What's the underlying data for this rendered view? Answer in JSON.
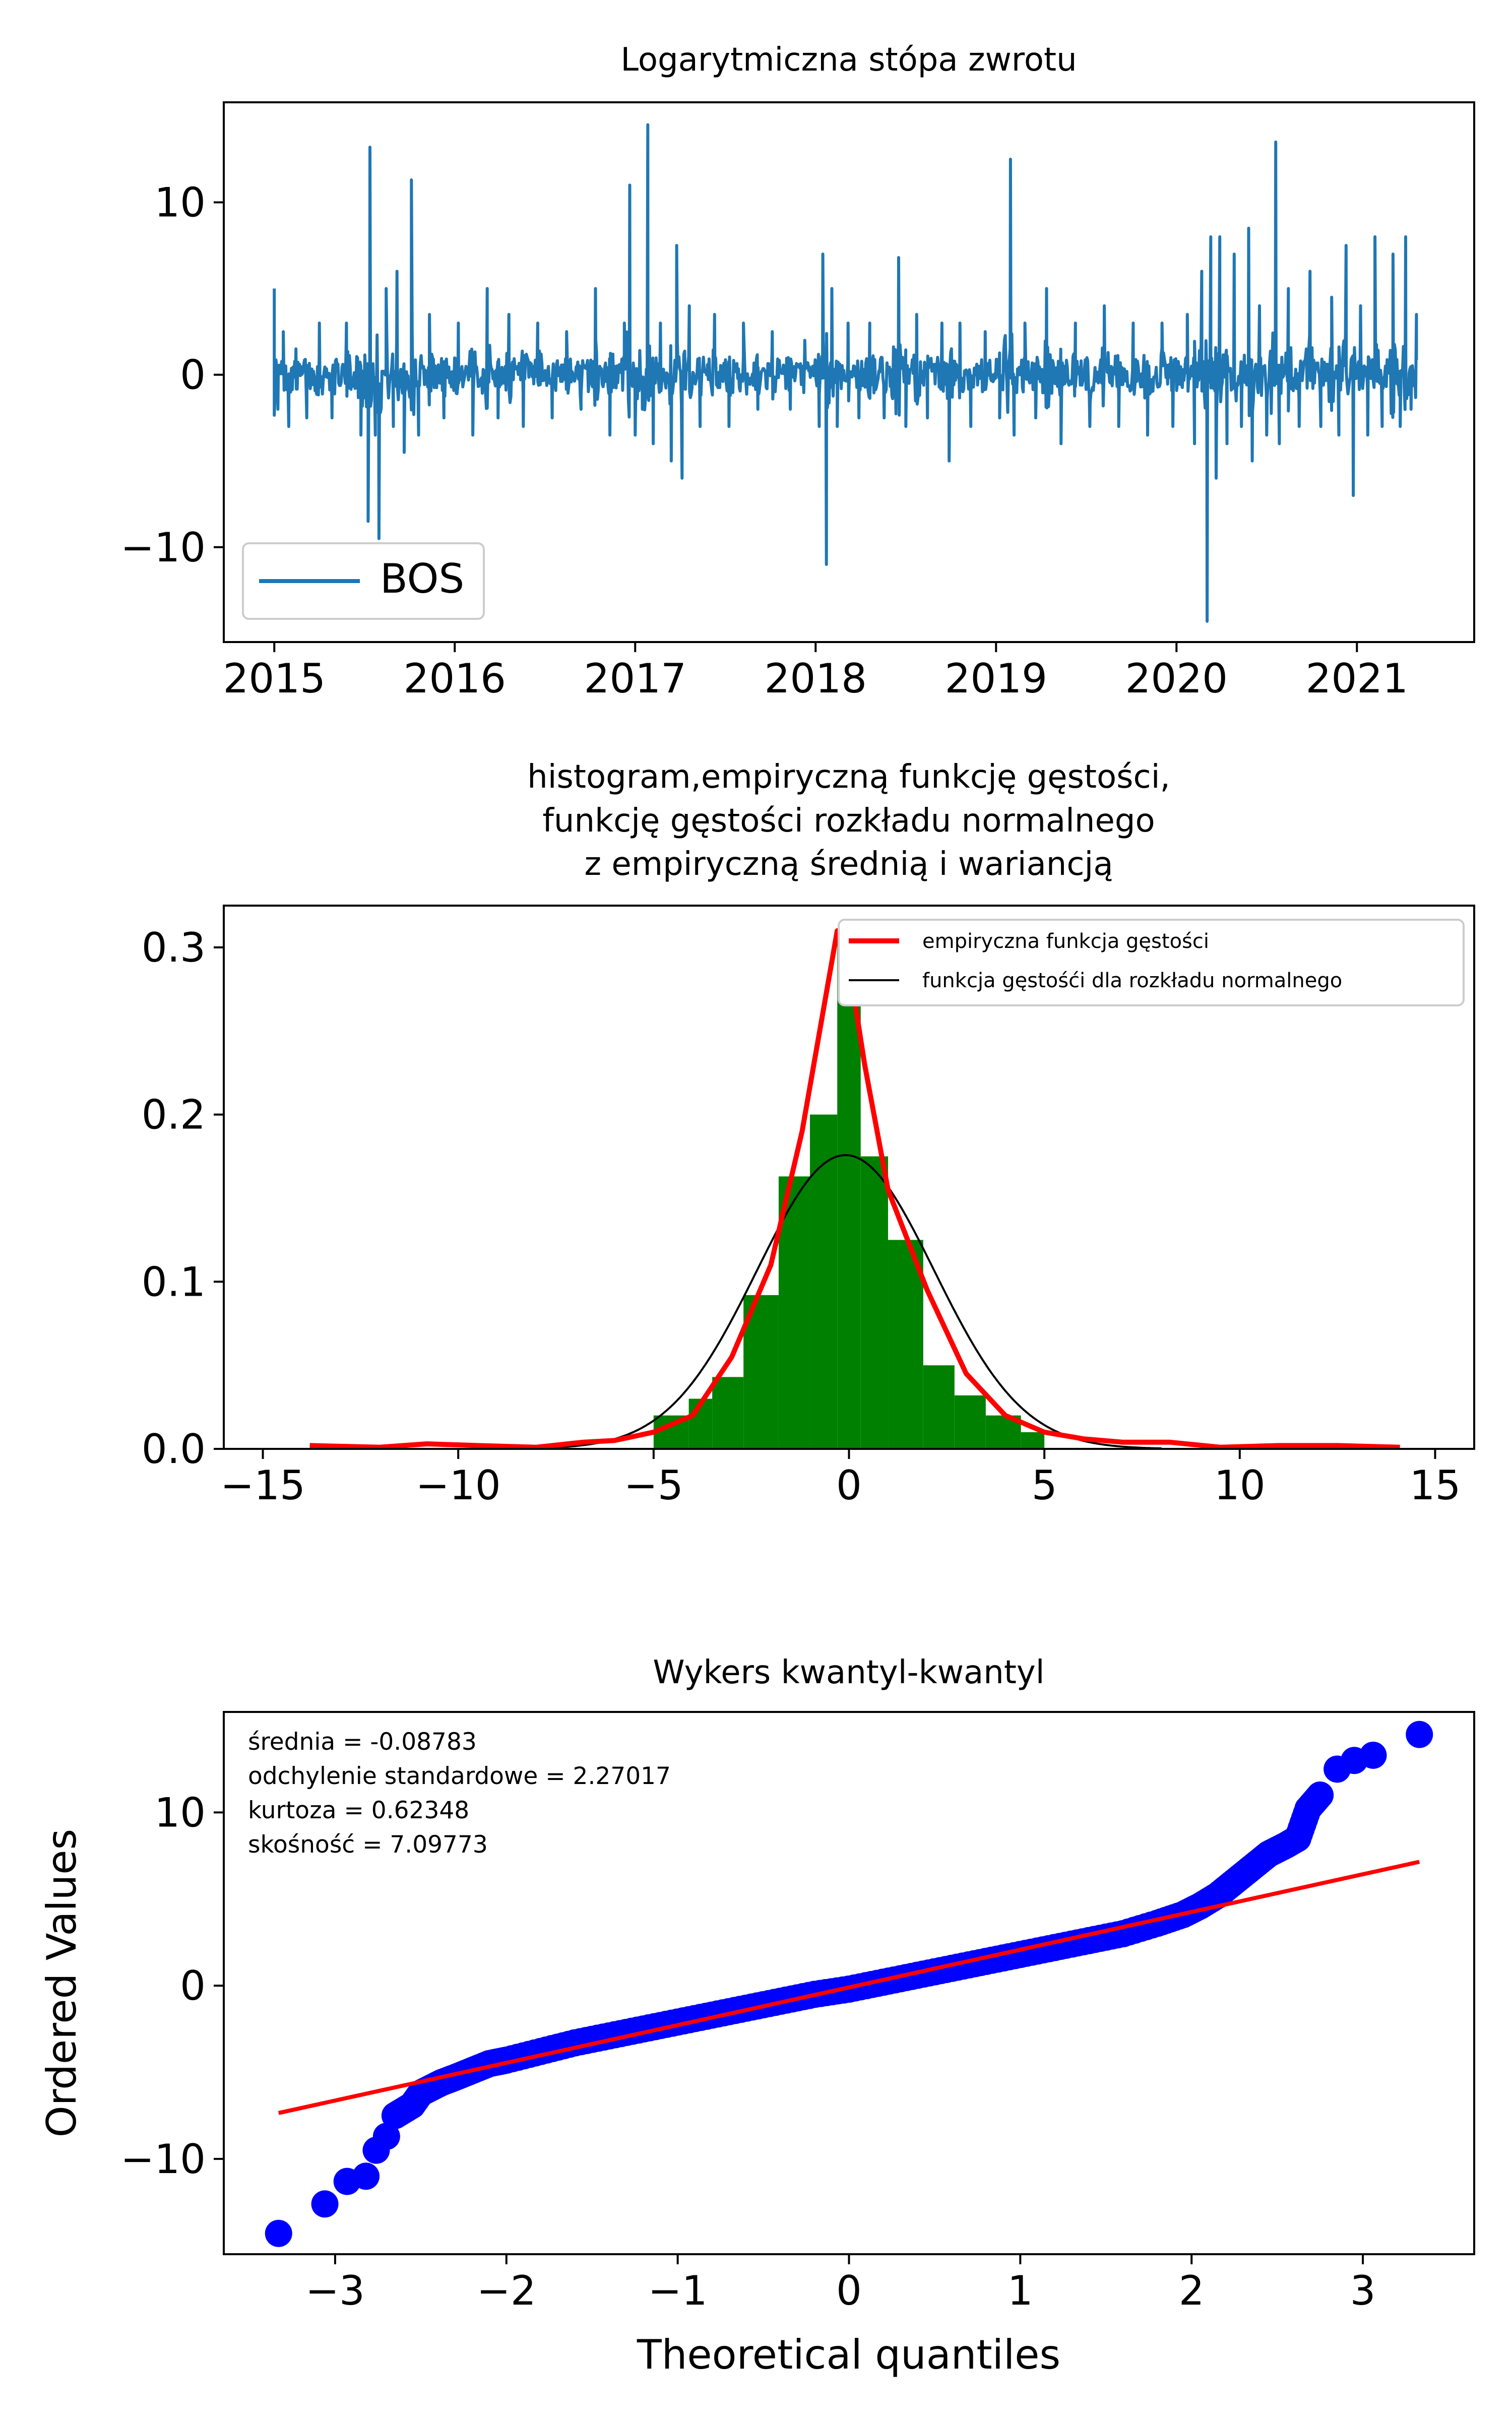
{
  "chart_data": [
    {
      "type": "line",
      "title": "Logarytmiczna stópa zwrotu",
      "xlabel": "",
      "ylabel": "",
      "xlim": [
        2014.72,
        2021.65
      ],
      "ylim": [
        -15.5,
        15.8
      ],
      "xticks": [
        2015,
        2016,
        2017,
        2018,
        2019,
        2020,
        2021
      ],
      "xtick_labels": [
        "2015",
        "2016",
        "2017",
        "2018",
        "2019",
        "2020",
        "2021"
      ],
      "yticks": [
        -10,
        0,
        10
      ],
      "ytick_labels": [
        "−10",
        "0",
        "10"
      ],
      "legend": {
        "position": "lower-left",
        "entries": [
          "BOS"
        ]
      },
      "grid": false,
      "series": [
        {
          "name": "BOS",
          "color": "#1f77b4",
          "x_start": 2015.0,
          "x_end": 2021.33,
          "points": [
            [
              2015.0,
              5.0
            ],
            [
              2015.02,
              -2.0
            ],
            [
              2015.05,
              2.5
            ],
            [
              2015.08,
              -3.0
            ],
            [
              2015.12,
              1.5
            ],
            [
              2015.18,
              -2.5
            ],
            [
              2015.25,
              3.0
            ],
            [
              2015.32,
              -2.5
            ],
            [
              2015.4,
              3.0
            ],
            [
              2015.48,
              -3.5
            ],
            [
              2015.52,
              -8.5
            ],
            [
              2015.53,
              13.2
            ],
            [
              2015.56,
              -3.5
            ],
            [
              2015.58,
              -9.5
            ],
            [
              2015.62,
              5.0
            ],
            [
              2015.66,
              -3.0
            ],
            [
              2015.68,
              6.0
            ],
            [
              2015.72,
              -4.5
            ],
            [
              2015.76,
              11.3
            ],
            [
              2015.8,
              -3.5
            ],
            [
              2015.86,
              3.5
            ],
            [
              2015.94,
              -2.5
            ],
            [
              2016.02,
              3.0
            ],
            [
              2016.1,
              -3.5
            ],
            [
              2016.18,
              5.0
            ],
            [
              2016.24,
              -2.5
            ],
            [
              2016.3,
              3.5
            ],
            [
              2016.38,
              -3.0
            ],
            [
              2016.46,
              3.0
            ],
            [
              2016.54,
              -2.5
            ],
            [
              2016.62,
              2.5
            ],
            [
              2016.7,
              -2.0
            ],
            [
              2016.78,
              5.0
            ],
            [
              2016.86,
              -3.5
            ],
            [
              2016.94,
              3.0
            ],
            [
              2016.97,
              11.0
            ],
            [
              2017.0,
              -3.5
            ],
            [
              2017.04,
              -2.0
            ],
            [
              2017.07,
              14.5
            ],
            [
              2017.1,
              -4.0
            ],
            [
              2017.14,
              3.0
            ],
            [
              2017.2,
              -5.0
            ],
            [
              2017.23,
              7.5
            ],
            [
              2017.26,
              -6.0
            ],
            [
              2017.3,
              4.0
            ],
            [
              2017.36,
              -3.0
            ],
            [
              2017.44,
              3.5
            ],
            [
              2017.52,
              -3.0
            ],
            [
              2017.6,
              3.0
            ],
            [
              2017.68,
              -2.0
            ],
            [
              2017.76,
              2.5
            ],
            [
              2017.86,
              -2.0
            ],
            [
              2017.94,
              2.0
            ],
            [
              2018.02,
              -3.0
            ],
            [
              2018.04,
              7.0
            ],
            [
              2018.06,
              -11.0
            ],
            [
              2018.09,
              5.0
            ],
            [
              2018.12,
              -3.0
            ],
            [
              2018.18,
              3.0
            ],
            [
              2018.24,
              -2.5
            ],
            [
              2018.3,
              3.0
            ],
            [
              2018.38,
              -2.5
            ],
            [
              2018.46,
              6.8
            ],
            [
              2018.5,
              -3.0
            ],
            [
              2018.56,
              3.5
            ],
            [
              2018.62,
              -2.5
            ],
            [
              2018.7,
              3.0
            ],
            [
              2018.74,
              -5.0
            ],
            [
              2018.8,
              3.0
            ],
            [
              2018.86,
              -3.0
            ],
            [
              2018.94,
              2.5
            ],
            [
              2019.02,
              -2.5
            ],
            [
              2019.08,
              12.5
            ],
            [
              2019.1,
              -3.5
            ],
            [
              2019.16,
              3.0
            ],
            [
              2019.22,
              -2.5
            ],
            [
              2019.28,
              5.0
            ],
            [
              2019.36,
              -4.0
            ],
            [
              2019.44,
              3.0
            ],
            [
              2019.52,
              -3.0
            ],
            [
              2019.6,
              4.0
            ],
            [
              2019.68,
              -3.0
            ],
            [
              2019.76,
              3.0
            ],
            [
              2019.84,
              -3.5
            ],
            [
              2019.92,
              3.0
            ],
            [
              2019.98,
              -3.0
            ],
            [
              2020.06,
              3.5
            ],
            [
              2020.1,
              -4.0
            ],
            [
              2020.14,
              6.0
            ],
            [
              2020.17,
              -14.3
            ],
            [
              2020.19,
              8.0
            ],
            [
              2020.22,
              -6.0
            ],
            [
              2020.24,
              8.0
            ],
            [
              2020.28,
              -4.0
            ],
            [
              2020.32,
              7.0
            ],
            [
              2020.36,
              -3.0
            ],
            [
              2020.4,
              8.5
            ],
            [
              2020.42,
              -5.0
            ],
            [
              2020.46,
              4.0
            ],
            [
              2020.5,
              -3.5
            ],
            [
              2020.55,
              13.5
            ],
            [
              2020.57,
              -4.0
            ],
            [
              2020.62,
              5.0
            ],
            [
              2020.68,
              -3.0
            ],
            [
              2020.74,
              6.0
            ],
            [
              2020.8,
              -3.0
            ],
            [
              2020.86,
              4.5
            ],
            [
              2020.9,
              -3.5
            ],
            [
              2020.94,
              7.5
            ],
            [
              2020.98,
              -7.0
            ],
            [
              2021.02,
              4.0
            ],
            [
              2021.06,
              -3.5
            ],
            [
              2021.1,
              8.0
            ],
            [
              2021.14,
              -3.0
            ],
            [
              2021.2,
              7.0
            ],
            [
              2021.24,
              -3.0
            ],
            [
              2021.27,
              8.0
            ],
            [
              2021.3,
              -2.0
            ],
            [
              2021.33,
              3.5
            ]
          ]
        }
      ]
    },
    {
      "type": "bar",
      "title": "histogram,empiryczną funkcję gęstości,\nfunkcję gęstości rozkładu normalnego\n z empiryczną średnią i wariancją",
      "xlabel": "",
      "ylabel": "",
      "xlim": [
        -16.0,
        16.0
      ],
      "ylim": [
        0,
        0.325
      ],
      "xticks": [
        -15,
        -10,
        -5,
        0,
        5,
        10,
        15
      ],
      "xtick_labels": [
        "−15",
        "−10",
        "−5",
        "0",
        "5",
        "10",
        "15"
      ],
      "yticks": [
        0.0,
        0.1,
        0.2,
        0.3
      ],
      "ytick_labels": [
        "0.0",
        "0.1",
        "0.2",
        "0.3"
      ],
      "legend": {
        "position": "top-right",
        "entries": [
          "empiryczna funkcja gęstości",
          "funkcja gęstośći dla rozkładu normalnego"
        ]
      },
      "grid": false,
      "histogram": {
        "color": "#008000",
        "bins": [
          [
            -5.0,
            -4.1,
            0.02
          ],
          [
            -4.1,
            -3.5,
            0.03
          ],
          [
            -3.5,
            -2.7,
            0.043
          ],
          [
            -2.7,
            -1.8,
            0.092
          ],
          [
            -1.8,
            -1.0,
            0.163
          ],
          [
            -1.0,
            -0.3,
            0.2
          ],
          [
            -0.3,
            0.3,
            0.31
          ],
          [
            0.3,
            1.0,
            0.175
          ],
          [
            1.0,
            1.9,
            0.125
          ],
          [
            1.9,
            2.7,
            0.05
          ],
          [
            2.7,
            3.5,
            0.032
          ],
          [
            3.5,
            4.4,
            0.02
          ],
          [
            4.4,
            5.0,
            0.01
          ]
        ]
      },
      "series": [
        {
          "name": "empiryczna funkcja gęstości",
          "color": "#ff0000",
          "points": [
            [
              -13.8,
              0.002
            ],
            [
              -12.0,
              0.001
            ],
            [
              -10.8,
              0.003
            ],
            [
              -9.5,
              0.002
            ],
            [
              -8.0,
              0.001
            ],
            [
              -6.8,
              0.004
            ],
            [
              -6.0,
              0.005
            ],
            [
              -5.0,
              0.01
            ],
            [
              -4.0,
              0.02
            ],
            [
              -3.0,
              0.055
            ],
            [
              -2.0,
              0.11
            ],
            [
              -1.2,
              0.19
            ],
            [
              -0.6,
              0.27
            ],
            [
              -0.3,
              0.31
            ],
            [
              0.0,
              0.29
            ],
            [
              0.4,
              0.23
            ],
            [
              1.0,
              0.155
            ],
            [
              2.0,
              0.095
            ],
            [
              3.0,
              0.045
            ],
            [
              4.0,
              0.02
            ],
            [
              5.0,
              0.01
            ],
            [
              6.0,
              0.006
            ],
            [
              7.0,
              0.004
            ],
            [
              8.2,
              0.004
            ],
            [
              9.5,
              0.001
            ],
            [
              11.0,
              0.002
            ],
            [
              12.5,
              0.002
            ],
            [
              14.1,
              0.001
            ]
          ]
        },
        {
          "name": "funkcja gęstośći dla rozkładu normalnego",
          "color": "#000000",
          "mean": -0.08783,
          "std": 2.27017
        }
      ]
    },
    {
      "type": "scatter",
      "title": "Wykers kwantyl-kwantyl",
      "xlabel": "Theoretical quantiles",
      "ylabel": "Ordered Values",
      "xlim": [
        -3.65,
        3.65
      ],
      "ylim": [
        -15.5,
        15.8
      ],
      "xticks": [
        -3,
        -2,
        -1,
        0,
        1,
        2,
        3
      ],
      "xtick_labels": [
        "−3",
        "−2",
        "−1",
        "0",
        "1",
        "2",
        "3"
      ],
      "yticks": [
        -10,
        0,
        10
      ],
      "ytick_labels": [
        "−10",
        "0",
        "10"
      ],
      "grid": false,
      "annotations": [
        "średnia = -0.08783",
        "odchylenie standardowe = 2.27017",
        "kurtoza = 0.62348",
        "skośność = 7.09773"
      ],
      "fit_line": {
        "color": "#ff0000",
        "x": [
          -3.33,
          3.33
        ],
        "y": [
          -7.35,
          7.15
        ]
      },
      "series": [
        {
          "name": "",
          "color": "#0000ff",
          "points": [
            [
              -3.33,
              -14.3
            ],
            [
              -3.06,
              -12.6
            ],
            [
              -2.93,
              -11.3
            ],
            [
              -2.82,
              -11.0
            ],
            [
              -2.76,
              -9.5
            ],
            [
              -2.7,
              -8.7
            ],
            [
              -2.65,
              -7.5
            ],
            [
              -2.6,
              -7.2
            ],
            [
              -2.55,
              -6.9
            ],
            [
              -2.5,
              -6.2
            ],
            [
              -2.44,
              -5.9
            ],
            [
              -2.38,
              -5.6
            ],
            [
              -2.3,
              -5.3
            ],
            [
              -2.2,
              -4.9
            ],
            [
              -2.1,
              -4.5
            ],
            [
              -2.0,
              -4.3
            ],
            [
              -1.8,
              -3.8
            ],
            [
              -1.6,
              -3.3
            ],
            [
              -1.4,
              -2.9
            ],
            [
              -1.2,
              -2.5
            ],
            [
              -1.0,
              -2.1
            ],
            [
              -0.8,
              -1.7
            ],
            [
              -0.6,
              -1.3
            ],
            [
              -0.4,
              -0.9
            ],
            [
              -0.2,
              -0.5
            ],
            [
              0.0,
              -0.2
            ],
            [
              0.2,
              0.2
            ],
            [
              0.4,
              0.6
            ],
            [
              0.6,
              1.0
            ],
            [
              0.8,
              1.4
            ],
            [
              1.0,
              1.8
            ],
            [
              1.2,
              2.2
            ],
            [
              1.4,
              2.6
            ],
            [
              1.6,
              3.0
            ],
            [
              1.8,
              3.6
            ],
            [
              1.95,
              4.1
            ],
            [
              2.05,
              4.6
            ],
            [
              2.15,
              5.2
            ],
            [
              2.25,
              6.0
            ],
            [
              2.35,
              6.8
            ],
            [
              2.45,
              7.6
            ],
            [
              2.55,
              8.1
            ],
            [
              2.62,
              8.5
            ],
            [
              2.68,
              10.2
            ],
            [
              2.75,
              11.0
            ],
            [
              2.85,
              12.5
            ],
            [
              2.95,
              13.0
            ],
            [
              3.06,
              13.3
            ],
            [
              3.33,
              14.5
            ]
          ]
        }
      ]
    }
  ]
}
